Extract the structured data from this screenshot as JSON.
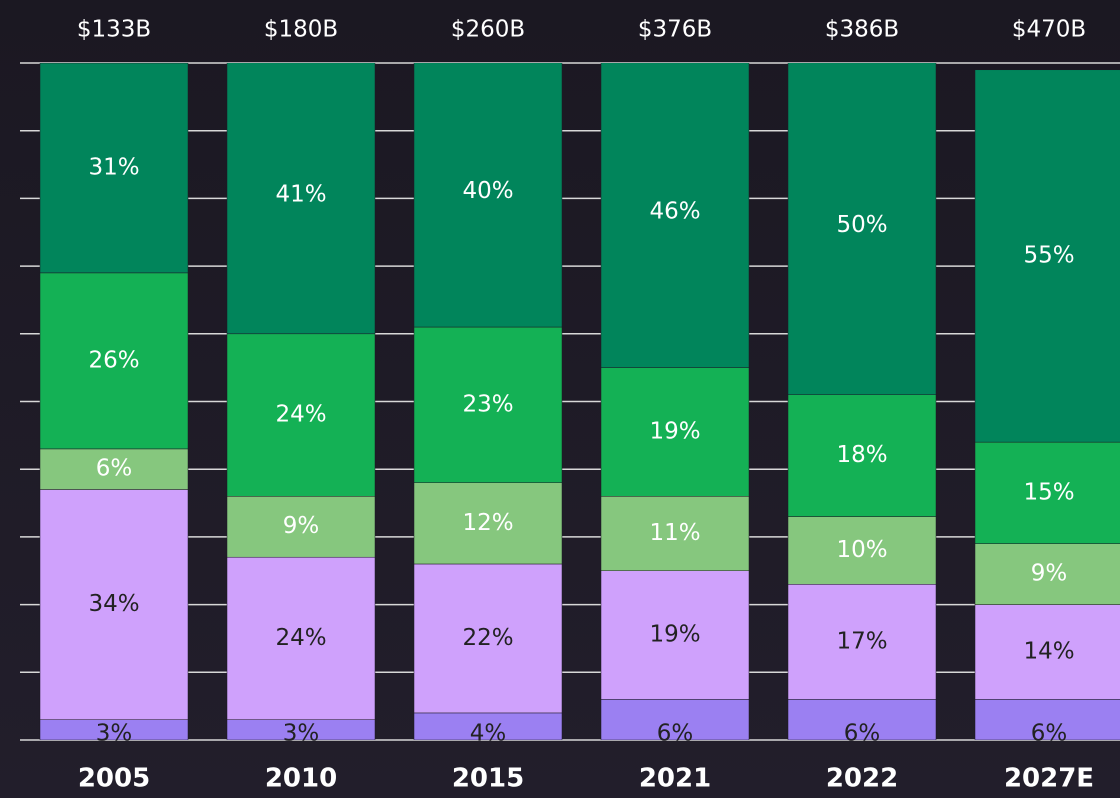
{
  "chart_data": {
    "type": "stacked_bar",
    "categories": [
      "2005",
      "2010",
      "2015",
      "2021",
      "2022",
      "2027E"
    ],
    "totals": {
      "values": [
        133,
        180,
        260,
        376,
        386,
        470
      ],
      "value_labels": [
        "$133B",
        "$180B",
        "$260B",
        "$376B",
        "$386B",
        "$470B"
      ]
    },
    "series": [
      {
        "color": "#9b80f2",
        "values": [
          3,
          3,
          4,
          6,
          6,
          6
        ],
        "value_labels": [
          "3%",
          "3%",
          "4%",
          "6%",
          "6%",
          "6%"
        ]
      },
      {
        "color": "#cfa1fc",
        "values": [
          34,
          24,
          22,
          19,
          17,
          14
        ],
        "value_labels": [
          "34%",
          "24%",
          "22%",
          "19%",
          "17%",
          "14%"
        ]
      },
      {
        "color": "#86c77e",
        "values": [
          6,
          9,
          12,
          11,
          10,
          9
        ],
        "value_labels": [
          "6%",
          "9%",
          "12%",
          "11%",
          "10%",
          "9%"
        ]
      },
      {
        "color": "#14b155",
        "values": [
          26,
          24,
          23,
          19,
          18,
          15
        ],
        "value_labels": [
          "26%",
          "24%",
          "23%",
          "19%",
          "18%",
          "15%"
        ]
      },
      {
        "color": "#01855b",
        "values": [
          31,
          41,
          40,
          46,
          50,
          55
        ],
        "value_labels": [
          "31%",
          "41%",
          "40%",
          "46%",
          "50%",
          "55%"
        ]
      }
    ],
    "ylim": [
      0,
      100
    ],
    "yticks": [
      0,
      10,
      20,
      30,
      40,
      50,
      60,
      70,
      80,
      90,
      100
    ],
    "grid": true
  }
}
